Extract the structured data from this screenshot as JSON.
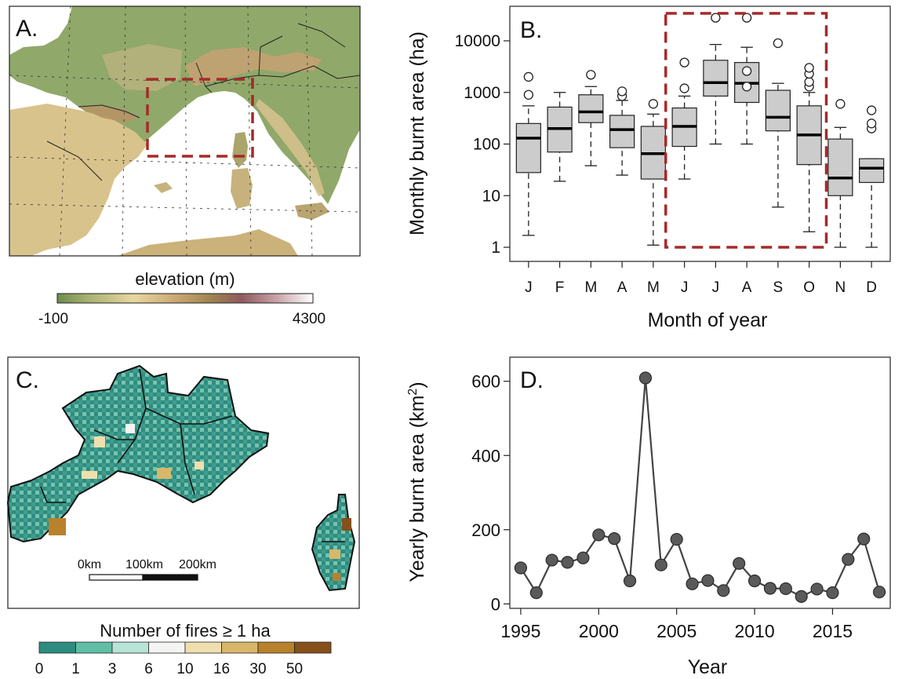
{
  "panels": {
    "a": {
      "letter": "A.",
      "colorbar": {
        "title": "elevation (m)",
        "min_label": "-100",
        "max_label": "4300",
        "colors": [
          "#6f8a50",
          "#a7b271",
          "#e9d6a0",
          "#c7a46e",
          "#9e8450",
          "#8f5a5e",
          "#c9a4aa",
          "#ffffff"
        ]
      }
    },
    "b": {
      "letter": "B."
    },
    "c": {
      "letter": "C.",
      "scalebar": {
        "labels": [
          "0km",
          "100km",
          "200km"
        ]
      },
      "colorbar": {
        "title": "Number of fires ≥ 1 ha",
        "tick_labels": [
          "0",
          "1",
          "3",
          "6",
          "10",
          "16",
          "30",
          "50"
        ],
        "colors": [
          "#2c8c80",
          "#5fbfa6",
          "#b7e4d6",
          "#f4f4f2",
          "#f0dfae",
          "#d8b76a",
          "#b9812c",
          "#85501a"
        ]
      }
    },
    "d": {
      "letter": "D."
    }
  },
  "chart_data": [
    {
      "type": "boxplot",
      "panel": "B",
      "xlabel": "Month of year",
      "ylabel": "Monthly burnt area (ha)",
      "yscale": "log",
      "ylim": [
        1,
        30000
      ],
      "yticks": [
        1,
        10,
        100,
        1000,
        10000
      ],
      "ytick_labels": [
        "1",
        "10",
        "100",
        "1000",
        "10000"
      ],
      "categories": [
        "J",
        "F",
        "M",
        "A",
        "M",
        "J",
        "J",
        "A",
        "S",
        "O",
        "N",
        "D"
      ],
      "boxes": [
        {
          "low": 1.7,
          "q1": 28,
          "median": 130,
          "q3": 250,
          "high": 550,
          "outliers": [
            900,
            2000
          ]
        },
        {
          "low": 19,
          "q1": 70,
          "median": 200,
          "q3": 520,
          "high": 1000,
          "outliers": []
        },
        {
          "low": 38,
          "q1": 260,
          "median": 420,
          "q3": 900,
          "high": 1300,
          "outliers": [
            2200
          ]
        },
        {
          "low": 25,
          "q1": 85,
          "median": 190,
          "q3": 360,
          "high": 700,
          "outliers": [
            850,
            1050
          ]
        },
        {
          "low": 1.1,
          "q1": 21,
          "median": 65,
          "q3": 220,
          "high": 380,
          "outliers": [
            600
          ]
        },
        {
          "low": 21,
          "q1": 90,
          "median": 220,
          "q3": 500,
          "high": 850,
          "outliers": [
            1200,
            3800
          ]
        },
        {
          "low": 100,
          "q1": 850,
          "median": 1550,
          "q3": 4200,
          "high": 8500,
          "outliers": [
            28000
          ]
        },
        {
          "low": 100,
          "q1": 640,
          "median": 1500,
          "q3": 3800,
          "high": 7500,
          "outliers": [
            1300,
            2600,
            28000
          ]
        },
        {
          "low": 6,
          "q1": 180,
          "median": 330,
          "q3": 1100,
          "high": 1500,
          "outliers": [
            9000
          ]
        },
        {
          "low": 2,
          "q1": 40,
          "median": 150,
          "q3": 550,
          "high": 1000,
          "outliers": [
            1300,
            1600,
            2300,
            3000
          ]
        },
        {
          "low": 1,
          "q1": 10,
          "median": 22,
          "q3": 125,
          "high": 210,
          "outliers": [
            600
          ]
        },
        {
          "low": 1,
          "q1": 18,
          "median": 34,
          "q3": 52,
          "high": 52,
          "outliers": [
            200,
            250,
            450
          ]
        }
      ],
      "highlight": {
        "from_index": 5,
        "to_index": 9,
        "color": "#a52a2a"
      }
    },
    {
      "type": "line",
      "panel": "D",
      "xlabel": "Year",
      "ylabel": "Yearly burnt area (km",
      "ylabel_sup": "2",
      "ylabel_close": ")",
      "xlim": [
        1994.3,
        2018.7
      ],
      "ylim": [
        -12,
        665
      ],
      "xticks": [
        1995,
        2000,
        2005,
        2010,
        2015
      ],
      "yticks": [
        0,
        200,
        400,
        600
      ],
      "x": [
        1995,
        1996,
        1997,
        1998,
        1999,
        2000,
        2001,
        2002,
        2003,
        2004,
        2005,
        2006,
        2007,
        2008,
        2009,
        2010,
        2011,
        2012,
        2013,
        2014,
        2015,
        2016,
        2017,
        2018
      ],
      "y": [
        97,
        30,
        118,
        112,
        124,
        186,
        176,
        62,
        609,
        105,
        174,
        54,
        63,
        36,
        109,
        62,
        42,
        41,
        20,
        40,
        30,
        120,
        175,
        32
      ]
    }
  ]
}
